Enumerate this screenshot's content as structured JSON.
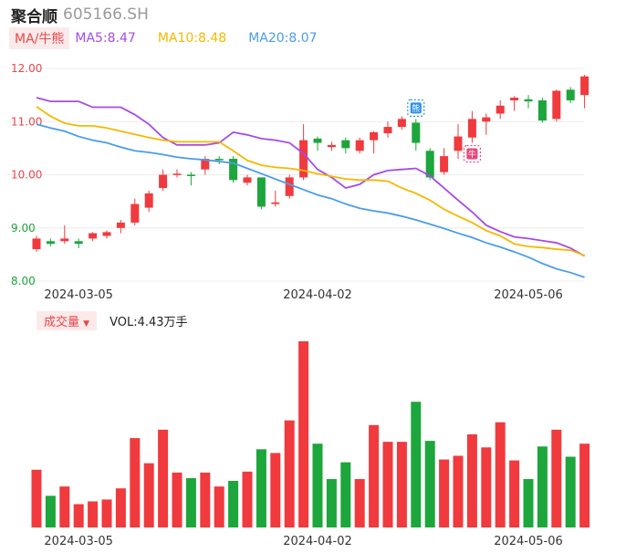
{
  "header": {
    "name": "聚合顺",
    "code": "605166.SH"
  },
  "indicators": {
    "button": "MA/牛熊",
    "ma5": {
      "label": "MA5:8.47",
      "color": "#a64ae8"
    },
    "ma10": {
      "label": "MA10:8.48",
      "color": "#f5b800"
    },
    "ma20": {
      "label": "MA20:8.07",
      "color": "#4a9de8"
    }
  },
  "volume": {
    "button": "成交量",
    "label": "VOL:4.43万手"
  },
  "colors": {
    "up": "#f03a3e",
    "down": "#1ca63b"
  },
  "badges": [
    {
      "index": 27,
      "text": "熊",
      "color": "#2a8ef0"
    },
    {
      "index": 31,
      "text": "牛",
      "color": "#e8467a"
    }
  ],
  "chart_data": {
    "type": "candlestick",
    "price_axis": {
      "ticks": [
        "12.00",
        "11.00",
        "10.00",
        "9.00",
        "8.00"
      ],
      "range": [
        8.0,
        12.0
      ]
    },
    "x_ticks": [
      {
        "index": 3,
        "label": "2024-03-05"
      },
      {
        "index": 20,
        "label": "2024-04-02"
      },
      {
        "index": 35,
        "label": "2024-05-06"
      }
    ],
    "candles": [
      {
        "o": 8.6,
        "c": 8.8,
        "h": 8.85,
        "l": 8.55
      },
      {
        "o": 8.75,
        "c": 8.7,
        "h": 8.8,
        "l": 8.65
      },
      {
        "o": 8.75,
        "c": 8.8,
        "h": 9.05,
        "l": 8.7
      },
      {
        "o": 8.75,
        "c": 8.7,
        "h": 8.8,
        "l": 8.62
      },
      {
        "o": 8.8,
        "c": 8.9,
        "h": 8.92,
        "l": 8.75
      },
      {
        "o": 8.85,
        "c": 8.92,
        "h": 8.95,
        "l": 8.8
      },
      {
        "o": 9.0,
        "c": 9.1,
        "h": 9.15,
        "l": 8.9
      },
      {
        "o": 9.1,
        "c": 9.45,
        "h": 9.55,
        "l": 9.05
      },
      {
        "o": 9.38,
        "c": 9.65,
        "h": 9.7,
        "l": 9.3
      },
      {
        "o": 9.75,
        "c": 10.0,
        "h": 10.1,
        "l": 9.7
      },
      {
        "o": 10.0,
        "c": 10.02,
        "h": 10.1,
        "l": 9.95
      },
      {
        "o": 10.0,
        "c": 9.98,
        "h": 10.05,
        "l": 9.8
      },
      {
        "o": 10.1,
        "c": 10.3,
        "h": 10.35,
        "l": 10.0
      },
      {
        "o": 10.3,
        "c": 10.28,
        "h": 10.35,
        "l": 10.2
      },
      {
        "o": 10.3,
        "c": 9.9,
        "h": 10.35,
        "l": 9.85
      },
      {
        "o": 9.85,
        "c": 9.95,
        "h": 10.0,
        "l": 9.8
      },
      {
        "o": 9.95,
        "c": 9.4,
        "h": 9.95,
        "l": 9.35
      },
      {
        "o": 9.45,
        "c": 9.48,
        "h": 9.7,
        "l": 9.4
      },
      {
        "o": 9.6,
        "c": 9.95,
        "h": 10.0,
        "l": 9.55
      },
      {
        "o": 9.95,
        "c": 10.65,
        "h": 10.95,
        "l": 9.9
      },
      {
        "o": 10.68,
        "c": 10.6,
        "h": 10.72,
        "l": 10.45
      },
      {
        "o": 10.52,
        "c": 10.56,
        "h": 10.62,
        "l": 10.45
      },
      {
        "o": 10.65,
        "c": 10.5,
        "h": 10.7,
        "l": 10.4
      },
      {
        "o": 10.45,
        "c": 10.65,
        "h": 10.7,
        "l": 10.4
      },
      {
        "o": 10.65,
        "c": 10.8,
        "h": 10.82,
        "l": 10.4
      },
      {
        "o": 10.78,
        "c": 10.9,
        "h": 11.0,
        "l": 10.7
      },
      {
        "o": 10.9,
        "c": 11.05,
        "h": 11.1,
        "l": 10.85
      },
      {
        "o": 10.98,
        "c": 10.6,
        "h": 11.05,
        "l": 10.45
      },
      {
        "o": 10.45,
        "c": 9.95,
        "h": 10.5,
        "l": 9.9
      },
      {
        "o": 10.05,
        "c": 10.35,
        "h": 10.5,
        "l": 10.0
      },
      {
        "o": 10.45,
        "c": 10.72,
        "h": 10.95,
        "l": 10.3
      },
      {
        "o": 10.7,
        "c": 11.05,
        "h": 11.2,
        "l": 10.6
      },
      {
        "o": 11.0,
        "c": 11.08,
        "h": 11.15,
        "l": 10.75
      },
      {
        "o": 11.15,
        "c": 11.3,
        "h": 11.4,
        "l": 11.05
      },
      {
        "o": 11.4,
        "c": 11.45,
        "h": 11.48,
        "l": 11.2
      },
      {
        "o": 11.42,
        "c": 11.38,
        "h": 11.5,
        "l": 11.25
      },
      {
        "o": 11.4,
        "c": 11.02,
        "h": 11.45,
        "l": 10.98
      },
      {
        "o": 11.05,
        "c": 11.58,
        "h": 11.6,
        "l": 11.0
      },
      {
        "o": 11.6,
        "c": 11.4,
        "h": 11.65,
        "l": 11.35
      },
      {
        "o": 11.5,
        "c": 11.85,
        "h": 11.88,
        "l": 11.25
      }
    ],
    "ma5": [
      11.45,
      11.38,
      11.38,
      11.38,
      11.27,
      11.27,
      11.27,
      11.13,
      10.95,
      10.7,
      10.56,
      10.56,
      10.56,
      10.6,
      10.8,
      10.75,
      10.68,
      10.65,
      10.6,
      10.4,
      10.1,
      9.95,
      9.75,
      9.82,
      10.0,
      10.08,
      10.1,
      10.12,
      9.98,
      9.75,
      9.52,
      9.3,
      9.05,
      8.93,
      8.83,
      8.8,
      8.76,
      8.72,
      8.62,
      8.47
    ],
    "ma10": [
      11.28,
      11.1,
      10.97,
      10.92,
      10.92,
      10.88,
      10.82,
      10.76,
      10.7,
      10.65,
      10.62,
      10.62,
      10.62,
      10.62,
      10.45,
      10.27,
      10.18,
      10.14,
      10.12,
      10.08,
      10.02,
      9.97,
      9.92,
      9.9,
      9.9,
      9.88,
      9.75,
      9.65,
      9.52,
      9.35,
      9.22,
      9.1,
      8.95,
      8.85,
      8.7,
      8.65,
      8.63,
      8.6,
      8.58,
      8.48
    ],
    "ma20": [
      10.95,
      10.88,
      10.82,
      10.72,
      10.65,
      10.6,
      10.52,
      10.45,
      10.42,
      10.38,
      10.33,
      10.3,
      10.28,
      10.25,
      10.22,
      10.12,
      10.02,
      9.92,
      9.82,
      9.72,
      9.62,
      9.55,
      9.45,
      9.37,
      9.32,
      9.28,
      9.22,
      9.15,
      9.07,
      8.99,
      8.9,
      8.82,
      8.72,
      8.64,
      8.55,
      8.45,
      8.33,
      8.23,
      8.16,
      8.07
    ],
    "volume": [
      {
        "v": 0.62,
        "dir": "up"
      },
      {
        "v": 0.34,
        "dir": "down"
      },
      {
        "v": 0.44,
        "dir": "up"
      },
      {
        "v": 0.25,
        "dir": "up"
      },
      {
        "v": 0.28,
        "dir": "up"
      },
      {
        "v": 0.3,
        "dir": "up"
      },
      {
        "v": 0.42,
        "dir": "up"
      },
      {
        "v": 0.96,
        "dir": "up"
      },
      {
        "v": 0.69,
        "dir": "up"
      },
      {
        "v": 1.05,
        "dir": "up"
      },
      {
        "v": 0.59,
        "dir": "up"
      },
      {
        "v": 0.53,
        "dir": "down"
      },
      {
        "v": 0.59,
        "dir": "up"
      },
      {
        "v": 0.44,
        "dir": "up"
      },
      {
        "v": 0.5,
        "dir": "down"
      },
      {
        "v": 0.6,
        "dir": "up"
      },
      {
        "v": 0.84,
        "dir": "down"
      },
      {
        "v": 0.8,
        "dir": "up"
      },
      {
        "v": 1.15,
        "dir": "up"
      },
      {
        "v": 2.0,
        "dir": "up"
      },
      {
        "v": 0.9,
        "dir": "down"
      },
      {
        "v": 0.52,
        "dir": "down"
      },
      {
        "v": 0.7,
        "dir": "down"
      },
      {
        "v": 0.52,
        "dir": "up"
      },
      {
        "v": 1.1,
        "dir": "up"
      },
      {
        "v": 0.92,
        "dir": "up"
      },
      {
        "v": 0.92,
        "dir": "up"
      },
      {
        "v": 1.35,
        "dir": "down"
      },
      {
        "v": 0.93,
        "dir": "down"
      },
      {
        "v": 0.73,
        "dir": "up"
      },
      {
        "v": 0.77,
        "dir": "up"
      },
      {
        "v": 1.0,
        "dir": "up"
      },
      {
        "v": 0.86,
        "dir": "up"
      },
      {
        "v": 1.13,
        "dir": "up"
      },
      {
        "v": 0.72,
        "dir": "up"
      },
      {
        "v": 0.52,
        "dir": "down"
      },
      {
        "v": 0.87,
        "dir": "down"
      },
      {
        "v": 1.05,
        "dir": "up"
      },
      {
        "v": 0.76,
        "dir": "down"
      },
      {
        "v": 0.9,
        "dir": "up"
      }
    ]
  }
}
